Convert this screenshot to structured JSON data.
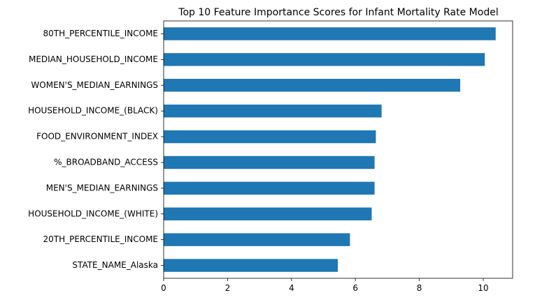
{
  "chart_data": {
    "type": "bar",
    "orientation": "horizontal",
    "title": "Top 10 Feature Importance Scores for Infant Mortality Rate Model",
    "xlabel": "",
    "ylabel": "",
    "categories": [
      "80TH_PERCENTILE_INCOME",
      "MEDIAN_HOUSEHOLD_INCOME",
      "WOMEN'S_MEDIAN_EARNINGS",
      "HOUSEHOLD_INCOME_(BLACK)",
      "FOOD_ENVIRONMENT_INDEX",
      "%_BROADBAND_ACCESS",
      "MEN'S_MEDIAN_EARNINGS",
      "HOUSEHOLD_INCOME_(WHITE)",
      "20TH_PERCENTILE_INCOME",
      "STATE_NAME_Alaska"
    ],
    "values": [
      10.39,
      10.05,
      9.28,
      6.82,
      6.64,
      6.6,
      6.6,
      6.51,
      5.83,
      5.45
    ],
    "xlim": [
      0,
      10.92
    ],
    "xticks": [
      0,
      2,
      4,
      6,
      8,
      10
    ],
    "xtick_labels": [
      "0",
      "2",
      "4",
      "6",
      "8",
      "10"
    ],
    "bar_color": "#1f77b4",
    "grid": false,
    "legend": "none"
  }
}
